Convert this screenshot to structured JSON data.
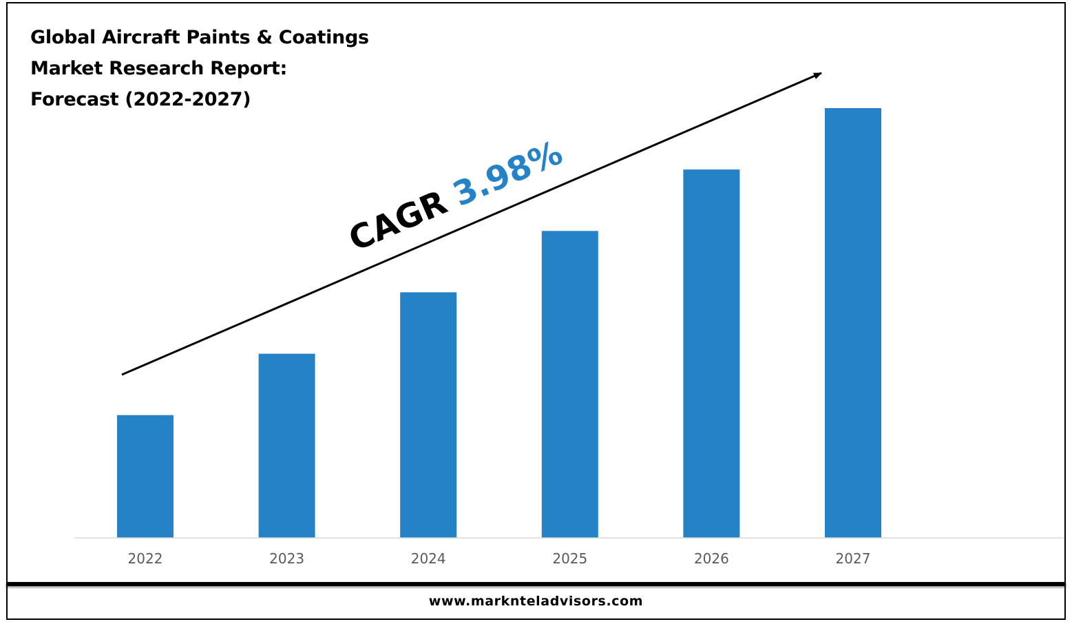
{
  "title": "Global Aircraft Paints & Coatings Market Research Report: Forecast (2022-2027)",
  "footer": {
    "url": "www.marknteladvisors.com"
  },
  "cagr": {
    "label": "CAGR",
    "value": "3.98%"
  },
  "colors": {
    "bar": "#2682c6",
    "cagr_value": "#2682c6",
    "axis": "#d9d9d9",
    "tick_text": "#595959"
  },
  "chart_data": {
    "type": "bar",
    "title": "Global Aircraft Paints & Coatings Market Research Report: Forecast (2022-2027)",
    "categories": [
      "2022",
      "2023",
      "2024",
      "2025",
      "2026",
      "2027"
    ],
    "values": [
      1.0,
      1.5,
      2.0,
      2.5,
      3.0,
      3.5
    ],
    "ylim": [
      0,
      3.5
    ],
    "xlabel": "",
    "ylabel": "",
    "grid": false,
    "legend": "none",
    "annotations": [
      {
        "type": "trend-arrow",
        "text": "CAGR 3.98%"
      }
    ]
  }
}
